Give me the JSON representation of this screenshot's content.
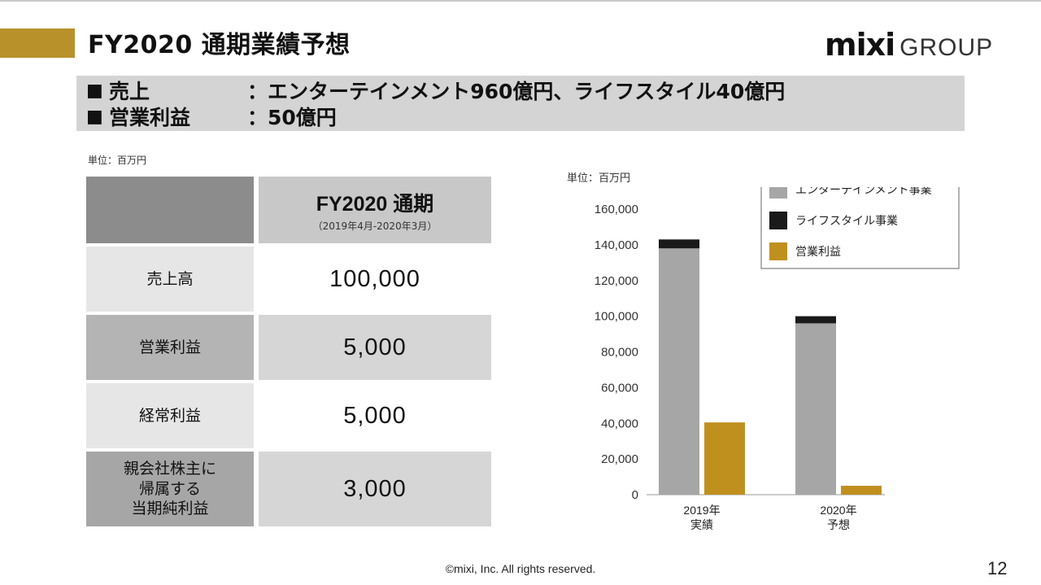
{
  "header": {
    "title": "FY2020 通期業績予想",
    "logo_main": "mixi",
    "logo_sub": "GROUP"
  },
  "summary": [
    {
      "bullet": "■",
      "label": "売上",
      "value": "：エンターテインメント960億円、ライフスタイル40億円"
    },
    {
      "bullet": "■",
      "label": "営業利益",
      "value": "：50億円"
    }
  ],
  "table": {
    "unit": "単位：百万円",
    "header_title": "FY2020 通期",
    "header_sub": "（2019年4月-2020年3月）",
    "rows": [
      {
        "label": "売上高",
        "value": "100,000"
      },
      {
        "label": "営業利益",
        "value": "5,000"
      },
      {
        "label": "経常利益",
        "value": "5,000"
      },
      {
        "label": "親会社株主に\n帰属する\n当期純利益",
        "value": "3,000"
      }
    ]
  },
  "colors": {
    "accent": "#b8912b",
    "entertainment": "#a6a6a6",
    "lifestyle": "#1a1a1a",
    "operating_profit": "#c0901f"
  },
  "chart_data": {
    "type": "bar",
    "unit": "単位：百万円",
    "categories": [
      "2019年\n実績",
      "2020年\n予想"
    ],
    "series": [
      {
        "name": "エンターテインメント事業",
        "values": [
          138000,
          96000
        ],
        "stack": "sales"
      },
      {
        "name": "ライフスタイル事業",
        "values": [
          5000,
          4000
        ],
        "stack": "sales"
      },
      {
        "name": "営業利益",
        "values": [
          40500,
          5000
        ],
        "stack": "profit"
      }
    ],
    "yticks": [
      "160,000",
      "140,000",
      "120,000",
      "100,000",
      "80,000",
      "60,000",
      "40,000",
      "20,000",
      "0"
    ],
    "ylim": [
      0,
      160000
    ],
    "legend_position": "top-right"
  },
  "footer": {
    "copyright": "©mixi, Inc. All rights reserved.",
    "page": "12"
  }
}
